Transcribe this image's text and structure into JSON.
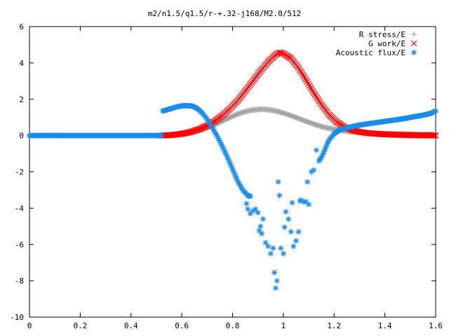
{
  "chart_data": {
    "type": "scatter",
    "title": "m2/n1.5/q1.5/r-+.32-j168/M2.0/512",
    "xlabel": "",
    "ylabel": "",
    "xlim": [
      0,
      1.6
    ],
    "ylim": [
      -10,
      6
    ],
    "xticks": [
      0,
      0.2,
      0.4,
      0.6,
      0.8,
      1,
      1.2,
      1.4,
      1.6
    ],
    "yticks": [
      -10,
      -8,
      -6,
      -4,
      -2,
      0,
      2,
      4,
      6
    ],
    "grid": false,
    "legend_position": "top-right",
    "series": [
      {
        "name": "R stress/E",
        "marker": "plus",
        "color": "#a0a0a0",
        "points": [
          [
            0.55,
            0.0
          ],
          [
            0.58,
            0.03
          ],
          [
            0.61,
            0.08
          ],
          [
            0.64,
            0.16
          ],
          [
            0.67,
            0.27
          ],
          [
            0.7,
            0.42
          ],
          [
            0.73,
            0.6
          ],
          [
            0.76,
            0.8
          ],
          [
            0.79,
            1.0
          ],
          [
            0.82,
            1.18
          ],
          [
            0.85,
            1.32
          ],
          [
            0.88,
            1.41
          ],
          [
            0.91,
            1.45
          ],
          [
            0.94,
            1.43
          ],
          [
            0.97,
            1.36
          ],
          [
            1.0,
            1.24
          ],
          [
            1.03,
            1.1
          ],
          [
            1.06,
            0.94
          ],
          [
            1.09,
            0.78
          ],
          [
            1.12,
            0.63
          ],
          [
            1.15,
            0.5
          ],
          [
            1.18,
            0.4
          ],
          [
            1.21,
            0.32
          ],
          [
            1.24,
            0.26
          ],
          [
            1.27,
            0.21
          ],
          [
            1.3,
            0.18
          ],
          [
            1.33,
            0.15
          ],
          [
            1.36,
            0.13
          ],
          [
            1.39,
            0.11
          ],
          [
            1.42,
            0.1
          ],
          [
            1.45,
            0.09
          ],
          [
            1.48,
            0.08
          ],
          [
            1.51,
            0.07
          ],
          [
            1.54,
            0.06
          ],
          [
            1.57,
            0.06
          ],
          [
            1.6,
            0.05
          ]
        ]
      },
      {
        "name": "G work/E",
        "marker": "cross",
        "color": "#ff0000",
        "points": [
          [
            0.52,
            0.0
          ],
          [
            0.55,
            0.02
          ],
          [
            0.58,
            0.06
          ],
          [
            0.61,
            0.12
          ],
          [
            0.64,
            0.22
          ],
          [
            0.67,
            0.36
          ],
          [
            0.7,
            0.55
          ],
          [
            0.73,
            0.8
          ],
          [
            0.76,
            1.1
          ],
          [
            0.79,
            1.48
          ],
          [
            0.82,
            1.92
          ],
          [
            0.85,
            2.45
          ],
          [
            0.88,
            3.0
          ],
          [
            0.91,
            3.55
          ],
          [
            0.94,
            4.05
          ],
          [
            0.97,
            4.45
          ],
          [
            0.985,
            4.58
          ],
          [
            1.0,
            4.52
          ],
          [
            1.03,
            4.25
          ],
          [
            1.06,
            3.72
          ],
          [
            1.09,
            3.05
          ],
          [
            1.12,
            2.35
          ],
          [
            1.15,
            1.7
          ],
          [
            1.18,
            1.15
          ],
          [
            1.21,
            0.75
          ],
          [
            1.24,
            0.47
          ],
          [
            1.27,
            0.3
          ],
          [
            1.3,
            0.2
          ],
          [
            1.33,
            0.14
          ],
          [
            1.36,
            0.1
          ],
          [
            1.39,
            0.07
          ],
          [
            1.42,
            0.05
          ],
          [
            1.45,
            0.04
          ],
          [
            1.48,
            0.03
          ],
          [
            1.51,
            0.02
          ],
          [
            1.54,
            0.01
          ],
          [
            1.57,
            0.01
          ],
          [
            1.6,
            0.0
          ]
        ]
      },
      {
        "name": "Acoustic flux/E",
        "marker": "star",
        "color": "#1a8ce8",
        "points": [
          [
            0.0,
            0.0
          ],
          [
            0.1,
            0.0
          ],
          [
            0.2,
            0.0
          ],
          [
            0.3,
            0.0
          ],
          [
            0.4,
            0.0
          ],
          [
            0.52,
            0.0
          ],
          [
            0.525,
            1.35
          ],
          [
            0.55,
            1.45
          ],
          [
            0.58,
            1.58
          ],
          [
            0.61,
            1.65
          ],
          [
            0.64,
            1.63
          ],
          [
            0.66,
            1.5
          ],
          [
            0.68,
            1.25
          ],
          [
            0.7,
            0.9
          ],
          [
            0.72,
            0.45
          ],
          [
            0.74,
            -0.05
          ],
          [
            0.76,
            -0.6
          ],
          [
            0.78,
            -1.2
          ],
          [
            0.8,
            -1.85
          ],
          [
            0.82,
            -2.5
          ],
          [
            0.84,
            -3.0
          ],
          [
            0.86,
            -3.3
          ],
          [
            0.87,
            -3.35
          ],
          [
            0.855,
            -3.75
          ],
          [
            0.86,
            -4.05
          ],
          [
            0.87,
            -4.3
          ],
          [
            0.88,
            -4.15
          ],
          [
            0.89,
            -4.05
          ],
          [
            0.9,
            -4.25
          ],
          [
            0.905,
            -5.25
          ],
          [
            0.91,
            -5.0
          ],
          [
            0.915,
            -5.4
          ],
          [
            0.92,
            -4.6
          ],
          [
            0.93,
            -5.9
          ],
          [
            0.94,
            -6.1
          ],
          [
            0.95,
            -6.5
          ],
          [
            0.96,
            -6.2
          ],
          [
            0.965,
            -7.55
          ],
          [
            0.97,
            -8.4
          ],
          [
            0.975,
            -8.0
          ],
          [
            0.98,
            -2.55
          ],
          [
            0.985,
            -3.3
          ],
          [
            0.99,
            -6.2
          ],
          [
            1.0,
            -6.5
          ],
          [
            1.005,
            -5.05
          ],
          [
            1.01,
            -4.2
          ],
          [
            1.02,
            -4.6
          ],
          [
            1.03,
            -5.3
          ],
          [
            1.035,
            -3.7
          ],
          [
            1.04,
            -6.1
          ],
          [
            1.05,
            -5.8
          ],
          [
            1.06,
            -5.3
          ],
          [
            1.065,
            -3.6
          ],
          [
            1.07,
            -3.55
          ],
          [
            1.08,
            -3.65
          ],
          [
            1.09,
            -3.65
          ],
          [
            1.095,
            -2.55
          ],
          [
            1.1,
            -3.8
          ],
          [
            1.11,
            -2.0
          ],
          [
            1.12,
            -1.9
          ],
          [
            1.13,
            -0.8
          ],
          [
            1.14,
            -1.4
          ],
          [
            1.15,
            -1.2
          ],
          [
            1.16,
            -0.9
          ],
          [
            1.17,
            -0.55
          ],
          [
            1.18,
            -0.25
          ],
          [
            1.2,
            0.1
          ],
          [
            1.22,
            0.3
          ],
          [
            1.25,
            0.42
          ],
          [
            1.28,
            0.52
          ],
          [
            1.31,
            0.6
          ],
          [
            1.34,
            0.66
          ],
          [
            1.37,
            0.72
          ],
          [
            1.4,
            0.78
          ],
          [
            1.43,
            0.84
          ],
          [
            1.46,
            0.9
          ],
          [
            1.49,
            0.97
          ],
          [
            1.52,
            1.05
          ],
          [
            1.55,
            1.12
          ],
          [
            1.58,
            1.22
          ],
          [
            1.6,
            1.35
          ]
        ]
      }
    ]
  }
}
